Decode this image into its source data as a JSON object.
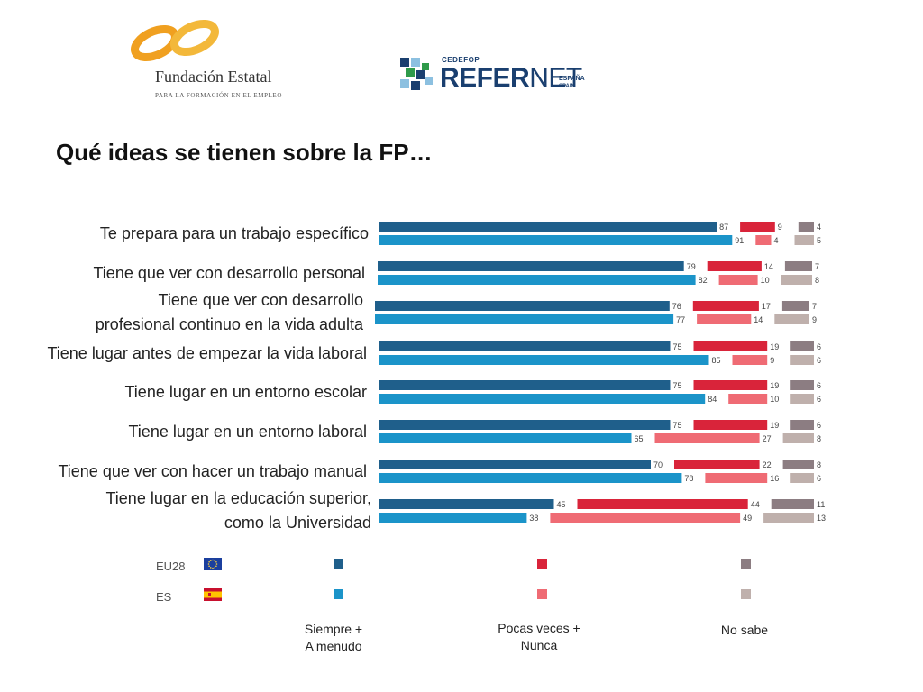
{
  "header": {
    "logo_fundacion": {
      "name": "Fundación Estatal",
      "subtitle": "PARA LA FORMACIÓN EN EL EMPLEO"
    },
    "logo_refernet": {
      "cedefop": "CEDEFOP",
      "refer": "REFER",
      "net": "NET",
      "espana": "ESPAÑA",
      "spain": "SPAIN"
    }
  },
  "title": "Qué ideas se tienen sobre la FP…",
  "chart_data": {
    "type": "bar",
    "orientation": "horizontal-stacked",
    "categories": [
      "Te prepara para un trabajo específico",
      "Tiene que ver con desarrollo personal",
      "Tiene que ver con desarrollo profesional continuo en la vida adulta",
      "Tiene lugar antes de empezar la vida laboral",
      "Tiene lugar en un entorno escolar",
      "Tiene lugar en un entorno laboral",
      "Tiene que ver con hacer un trabajo manual",
      "Tiene lugar en la educación superior, como la Universidad"
    ],
    "category_lines": [
      [
        "Te prepara para un trabajo específico"
      ],
      [
        "Tiene que ver con desarrollo personal"
      ],
      [
        "Tiene que ver con desarrollo",
        "profesional continuo en la vida adulta"
      ],
      [
        "Tiene lugar antes de empezar la vida laboral"
      ],
      [
        "Tiene lugar en un entorno escolar"
      ],
      [
        "Tiene lugar en un entorno laboral"
      ],
      [
        "Tiene que ver con hacer un trabajo manual"
      ],
      [
        "Tiene lugar en la educación superior,",
        "como la Universidad"
      ]
    ],
    "groups": [
      "EU28",
      "ES"
    ],
    "answers": [
      "Siempre + A menudo",
      "Pocas veces + Nunca",
      "No sabe"
    ],
    "series": [
      {
        "group": "EU28",
        "answer": "Siempre + A menudo",
        "values": [
          87,
          79,
          76,
          75,
          75,
          75,
          70,
          45
        ]
      },
      {
        "group": "EU28",
        "answer": "Pocas veces + Nunca",
        "values": [
          9,
          14,
          17,
          19,
          19,
          19,
          22,
          44
        ]
      },
      {
        "group": "EU28",
        "answer": "No sabe",
        "values": [
          4,
          7,
          7,
          6,
          6,
          6,
          8,
          11
        ]
      },
      {
        "group": "ES",
        "answer": "Siempre + A menudo",
        "values": [
          91,
          82,
          77,
          85,
          84,
          65,
          78,
          38
        ]
      },
      {
        "group": "ES",
        "answer": "Pocas veces + Nunca",
        "values": [
          4,
          10,
          14,
          9,
          10,
          27,
          16,
          49
        ]
      },
      {
        "group": "ES",
        "answer": "No sabe",
        "values": [
          5,
          8,
          9,
          6,
          6,
          8,
          6,
          13
        ]
      }
    ],
    "colors": {
      "EU28": [
        "#1f5f8b",
        "#d9243a",
        "#8c7d82"
      ],
      "ES": [
        "#1b94c9",
        "#ef6b74",
        "#bfb0ac"
      ]
    },
    "legend": {
      "groups": [
        "EU28",
        "ES"
      ],
      "labels": [
        [
          "Siempre +",
          "A menudo"
        ],
        [
          "Pocas veces +",
          "Nunca"
        ],
        [
          "No sabe"
        ]
      ]
    },
    "gridlines": false,
    "value_labels": true
  }
}
